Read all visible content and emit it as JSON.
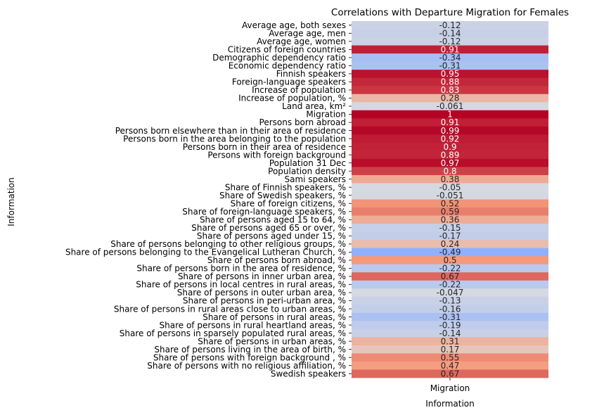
{
  "chart_data": {
    "type": "heatmap",
    "title": "Correlations with Departure Migration for Females",
    "xlabel": "Information",
    "ylabel": "Information",
    "columns": [
      "Migration"
    ],
    "colormap": "coolwarm",
    "color_range": [
      -1,
      1
    ],
    "colorbar": false,
    "rows": [
      {
        "label": "Average age, both sexes",
        "value": -0.12,
        "text": "-0.12"
      },
      {
        "label": "Average age, men",
        "value": -0.14,
        "text": "-0.14"
      },
      {
        "label": "Average age, women",
        "value": -0.12,
        "text": "-0.12"
      },
      {
        "label": "Citizens of foreign countries",
        "value": 0.91,
        "text": "0.91"
      },
      {
        "label": "Demographic dependency ratio",
        "value": -0.34,
        "text": "-0.34"
      },
      {
        "label": "Economic dependency ratio",
        "value": -0.31,
        "text": "-0.31"
      },
      {
        "label": "Finnish speakers",
        "value": 0.95,
        "text": "0.95"
      },
      {
        "label": "Foreign-language speakers",
        "value": 0.88,
        "text": "0.88"
      },
      {
        "label": "Increase of population",
        "value": 0.83,
        "text": "0.83"
      },
      {
        "label": "Increase of population, %",
        "value": 0.28,
        "text": "0.28"
      },
      {
        "label": "Land area, km²",
        "value": -0.061,
        "text": "-0.061"
      },
      {
        "label": "Migration",
        "value": 1,
        "text": "1"
      },
      {
        "label": "Persons born abroad",
        "value": 0.91,
        "text": "0.91"
      },
      {
        "label": "Persons born elsewhere than in their area of residence",
        "value": 0.99,
        "text": "0.99"
      },
      {
        "label": "Persons born in the area belonging to the population",
        "value": 0.92,
        "text": "0.92"
      },
      {
        "label": "Persons born in their area of residence",
        "value": 0.9,
        "text": "0.9"
      },
      {
        "label": "Persons with foreign background",
        "value": 0.89,
        "text": "0.89"
      },
      {
        "label": "Population 31 Dec",
        "value": 0.97,
        "text": "0.97"
      },
      {
        "label": "Population density",
        "value": 0.8,
        "text": "0.8"
      },
      {
        "label": "Sami speakers",
        "value": 0.38,
        "text": "0.38"
      },
      {
        "label": "Share of Finnish speakers, %",
        "value": -0.05,
        "text": "-0.05"
      },
      {
        "label": "Share of Swedish speakers, %",
        "value": -0.051,
        "text": "-0.051"
      },
      {
        "label": "Share of foreign citizens, %",
        "value": 0.52,
        "text": "0.52"
      },
      {
        "label": "Share of foreign-language speakers, %",
        "value": 0.59,
        "text": "0.59"
      },
      {
        "label": "Share of persons aged 15 to 64, %",
        "value": 0.36,
        "text": "0.36"
      },
      {
        "label": "Share of persons aged 65 or over, %",
        "value": -0.15,
        "text": "-0.15"
      },
      {
        "label": "Share of persons aged under 15, %",
        "value": -0.17,
        "text": "-0.17"
      },
      {
        "label": "Share of persons belonging to other religious groups, %",
        "value": 0.24,
        "text": "0.24"
      },
      {
        "label": "Share of persons belonging to the Evangelical Lutheran Church, %",
        "value": -0.49,
        "text": "-0.49"
      },
      {
        "label": "Share of persons born abroad, %",
        "value": 0.5,
        "text": "0.5"
      },
      {
        "label": "Share of persons born in the area of residence, %",
        "value": -0.22,
        "text": "-0.22"
      },
      {
        "label": "Share of persons in inner urban area, %",
        "value": 0.67,
        "text": "0.67"
      },
      {
        "label": "Share of persons in local centres in rural areas, %",
        "value": -0.22,
        "text": "-0.22"
      },
      {
        "label": "Share of persons in outer urban area, %",
        "value": -0.047,
        "text": "-0.047"
      },
      {
        "label": "Share of persons in peri-urban area, %",
        "value": -0.13,
        "text": "-0.13"
      },
      {
        "label": "Share of persons in rural areas close to urban areas, %",
        "value": -0.16,
        "text": "-0.16"
      },
      {
        "label": "Share of persons in rural areas, %",
        "value": -0.31,
        "text": "-0.31"
      },
      {
        "label": "Share of persons in rural heartland areas, %",
        "value": -0.19,
        "text": "-0.19"
      },
      {
        "label": "Share of persons in sparsely populated rural areas, %",
        "value": -0.14,
        "text": "-0.14"
      },
      {
        "label": "Share of persons in urban areas, %",
        "value": 0.31,
        "text": "0.31"
      },
      {
        "label": "Share of persons living in the area of birth, %",
        "value": 0.17,
        "text": "0.17"
      },
      {
        "label": "Share of persons with foreign background , %",
        "value": 0.55,
        "text": "0.55"
      },
      {
        "label": "Share of persons with no religious affiliation, %",
        "value": 0.47,
        "text": "0.47"
      },
      {
        "label": "Swedish speakers",
        "value": 0.67,
        "text": "0.67"
      }
    ]
  }
}
